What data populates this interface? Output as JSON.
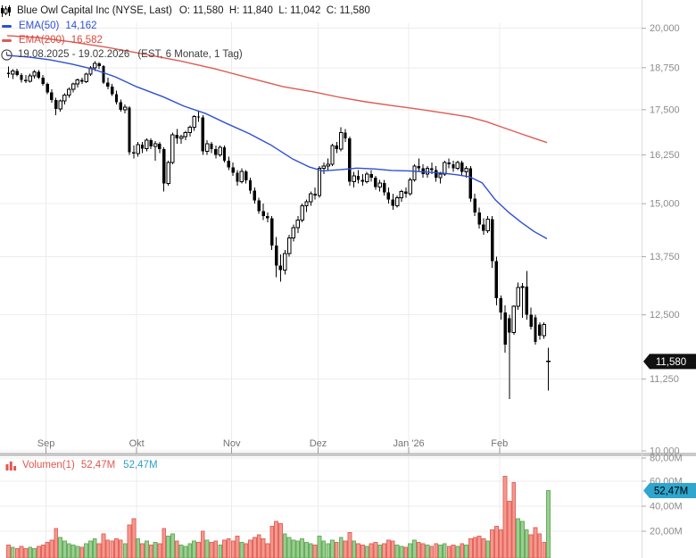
{
  "header": {
    "title": "Blue Owl Capital Inc (NYSE, Last)",
    "ohlc": "O: 11,580  H: 11,840  L: 11,042  C: 11,580",
    "ema50_label": "EMA(50)",
    "ema50_value": "14,162",
    "ema200_label": "EMA(200)",
    "ema200_value": "16,582",
    "range": "19.08.2025 - 19.02.2026",
    "range_info": "(EST, 6 Monate, 1 Tag)"
  },
  "volume_legend": {
    "label": "Volumen(1)",
    "value": "52,47M",
    "last_value": "52,47M"
  },
  "icons": [
    "candlestick-icon",
    "clock-icon",
    "volume-bars-icon"
  ],
  "colors": {
    "ema50": "#2e4fd4",
    "ema200": "#df5a52",
    "candle": "#000000",
    "vol_up_fill": "#9bce92",
    "vol_up_stroke": "#67ad5e",
    "vol_down_fill": "#f5988f",
    "vol_down_stroke": "#e2675e",
    "grid": "#ececec",
    "axis_text": "#8c8c8c",
    "time_text": "#737373",
    "price_badge_bg": "#111111",
    "price_badge_text": "#ffffff",
    "volume_badge_bg": "#2ea6ce",
    "volume_badge_text": "#0c2630",
    "divider": "#c9c9c9"
  },
  "chart_data": {
    "type": "candlestick+volume",
    "price_scale": "log",
    "ylim": [
      10000,
      20000
    ],
    "y_ticks": [
      {
        "label": "20,000",
        "value": 20000
      },
      {
        "label": "18,750",
        "value": 18750
      },
      {
        "label": "17,500",
        "value": 17500
      },
      {
        "label": "16,250",
        "value": 16250
      },
      {
        "label": "15,000",
        "value": 15000
      },
      {
        "label": "13,750",
        "value": 13750
      },
      {
        "label": "12,500",
        "value": 12500
      },
      {
        "label": "11,250",
        "value": 11250
      },
      {
        "label": "10,000",
        "value": 10000
      }
    ],
    "volume_y_ticks": [
      {
        "label": "80,00M",
        "value": 80
      },
      {
        "label": "60,00M",
        "value": 60
      },
      {
        "label": "40,00M",
        "value": 40
      },
      {
        "label": "20,00M",
        "value": 20
      }
    ],
    "x_ticks": [
      {
        "label": "Sep",
        "day": 9
      },
      {
        "label": "Okt",
        "day": 30
      },
      {
        "label": "Nov",
        "day": 52
      },
      {
        "label": "Dez",
        "day": 72
      },
      {
        "label": "Jan '26",
        "day": 93
      },
      {
        "label": "Feb",
        "day": 114
      }
    ],
    "last_price": "11,580",
    "last_volume": "52,47M",
    "candles": [
      [
        18600,
        18780,
        18450,
        18550,
        9,
        "r"
      ],
      [
        18550,
        18700,
        18400,
        18650,
        7,
        "g"
      ],
      [
        18650,
        18720,
        18480,
        18520,
        6,
        "r"
      ],
      [
        18520,
        18580,
        18300,
        18380,
        8,
        "r"
      ],
      [
        18380,
        18520,
        18280,
        18330,
        6,
        "r"
      ],
      [
        18330,
        18560,
        18300,
        18500,
        7,
        "g"
      ],
      [
        18500,
        18680,
        18420,
        18620,
        6,
        "g"
      ],
      [
        18620,
        18680,
        18400,
        18450,
        8,
        "r"
      ],
      [
        18450,
        18520,
        18200,
        18250,
        9,
        "r"
      ],
      [
        18250,
        18300,
        17950,
        18000,
        11,
        "r"
      ],
      [
        18000,
        18100,
        17700,
        17780,
        13,
        "r"
      ],
      [
        17780,
        17850,
        17350,
        17520,
        22,
        "r"
      ],
      [
        17520,
        17800,
        17450,
        17750,
        15,
        "g"
      ],
      [
        17750,
        17980,
        17650,
        17920,
        12,
        "g"
      ],
      [
        17920,
        18150,
        17850,
        18100,
        10,
        "g"
      ],
      [
        18100,
        18300,
        18000,
        18250,
        9,
        "g"
      ],
      [
        18250,
        18420,
        18150,
        18380,
        8,
        "g"
      ],
      [
        18380,
        18450,
        18250,
        18320,
        7,
        "r"
      ],
      [
        18320,
        18600,
        18280,
        18550,
        10,
        "g"
      ],
      [
        18550,
        18800,
        18500,
        18750,
        12,
        "g"
      ],
      [
        18750,
        18950,
        18650,
        18880,
        14,
        "g"
      ],
      [
        18880,
        18920,
        18700,
        18800,
        10,
        "r"
      ],
      [
        18800,
        18820,
        18250,
        18300,
        18,
        "r"
      ],
      [
        18300,
        18450,
        18100,
        18180,
        13,
        "r"
      ],
      [
        18180,
        18250,
        17900,
        17950,
        12,
        "r"
      ],
      [
        17950,
        18050,
        17650,
        17720,
        14,
        "r"
      ],
      [
        17720,
        17800,
        17450,
        17500,
        13,
        "r"
      ],
      [
        17500,
        17650,
        17400,
        17580,
        10,
        "g"
      ],
      [
        17560,
        17600,
        16250,
        16320,
        25,
        "r"
      ],
      [
        16320,
        16500,
        16150,
        16280,
        30,
        "r"
      ],
      [
        16280,
        16600,
        16200,
        16520,
        14,
        "g"
      ],
      [
        16520,
        16600,
        16300,
        16420,
        10,
        "r"
      ],
      [
        16420,
        16700,
        16350,
        16650,
        12,
        "g"
      ],
      [
        16650,
        16700,
        16400,
        16480,
        9,
        "r"
      ],
      [
        16480,
        16620,
        16100,
        16550,
        11,
        "g"
      ],
      [
        16550,
        16600,
        16300,
        16400,
        10,
        "r"
      ],
      [
        16400,
        16450,
        15300,
        15500,
        22,
        "r"
      ],
      [
        15500,
        16100,
        15450,
        16050,
        16,
        "g"
      ],
      [
        16050,
        16850,
        16000,
        16800,
        18,
        "g"
      ],
      [
        16800,
        16950,
        16550,
        16700,
        12,
        "r"
      ],
      [
        16700,
        16800,
        16550,
        16750,
        9,
        "g"
      ],
      [
        16750,
        16900,
        16650,
        16850,
        8,
        "g"
      ],
      [
        16850,
        17050,
        16750,
        17000,
        10,
        "g"
      ],
      [
        17000,
        17350,
        16900,
        17300,
        12,
        "g"
      ],
      [
        17300,
        17450,
        17150,
        17280,
        11,
        "r"
      ],
      [
        17280,
        17350,
        16250,
        16350,
        20,
        "r"
      ],
      [
        16350,
        16650,
        16250,
        16550,
        13,
        "g"
      ],
      [
        16550,
        16600,
        16300,
        16400,
        11,
        "r"
      ],
      [
        16400,
        16500,
        16150,
        16250,
        12,
        "r"
      ],
      [
        16250,
        16500,
        16200,
        16450,
        9,
        "g"
      ],
      [
        16450,
        16500,
        16050,
        16100,
        13,
        "r"
      ],
      [
        16100,
        16200,
        15850,
        15920,
        14,
        "r"
      ],
      [
        15920,
        16050,
        15700,
        15780,
        12,
        "r"
      ],
      [
        15780,
        15850,
        15450,
        15550,
        16,
        "r"
      ],
      [
        15550,
        15900,
        15500,
        15820,
        11,
        "g"
      ],
      [
        15820,
        15850,
        15500,
        15580,
        10,
        "r"
      ],
      [
        15580,
        15650,
        15250,
        15320,
        13,
        "r"
      ],
      [
        15320,
        15400,
        15000,
        15080,
        15,
        "r"
      ],
      [
        15080,
        15150,
        14750,
        14820,
        17,
        "r"
      ],
      [
        14820,
        15000,
        14600,
        14700,
        14,
        "r"
      ],
      [
        14700,
        14780,
        14550,
        14650,
        10,
        "r"
      ],
      [
        14650,
        14700,
        13900,
        14000,
        24,
        "r"
      ],
      [
        14000,
        14200,
        13300,
        13550,
        28,
        "r"
      ],
      [
        13550,
        13800,
        13200,
        13450,
        26,
        "r"
      ],
      [
        13450,
        13900,
        13350,
        13820,
        18,
        "g"
      ],
      [
        13820,
        14250,
        13750,
        14180,
        15,
        "g"
      ],
      [
        14180,
        14500,
        14100,
        14420,
        13,
        "g"
      ],
      [
        14420,
        14700,
        14300,
        14600,
        12,
        "g"
      ],
      [
        14600,
        15000,
        14550,
        14950,
        14,
        "g"
      ],
      [
        14950,
        15100,
        14800,
        15050,
        11,
        "g"
      ],
      [
        15050,
        15300,
        14950,
        15250,
        10,
        "g"
      ],
      [
        15250,
        15400,
        15100,
        15200,
        9,
        "r"
      ],
      [
        15200,
        15950,
        15150,
        15900,
        16,
        "g"
      ],
      [
        15900,
        16050,
        15750,
        15950,
        12,
        "g"
      ],
      [
        15950,
        16150,
        15850,
        16000,
        10,
        "g"
      ],
      [
        16000,
        16550,
        15950,
        16500,
        13,
        "g"
      ],
      [
        16500,
        16600,
        16300,
        16400,
        11,
        "r"
      ],
      [
        16400,
        17000,
        16350,
        16850,
        15,
        "g"
      ],
      [
        16850,
        16950,
        16600,
        16700,
        12,
        "r"
      ],
      [
        16700,
        16750,
        15450,
        15550,
        19,
        "r"
      ],
      [
        15550,
        15800,
        15400,
        15700,
        12,
        "g"
      ],
      [
        15700,
        15850,
        15500,
        15600,
        10,
        "r"
      ],
      [
        15600,
        15750,
        15450,
        15550,
        9,
        "r"
      ],
      [
        15550,
        15800,
        15500,
        15750,
        8,
        "g"
      ],
      [
        15750,
        15850,
        15550,
        15650,
        10,
        "r"
      ],
      [
        15650,
        15700,
        15350,
        15420,
        11,
        "r"
      ],
      [
        15420,
        15600,
        15300,
        15520,
        9,
        "g"
      ],
      [
        15520,
        15600,
        15200,
        15280,
        10,
        "r"
      ],
      [
        15280,
        15400,
        15000,
        15100,
        13,
        "r"
      ],
      [
        15100,
        15250,
        14850,
        14950,
        12,
        "r"
      ],
      [
        14950,
        15200,
        14900,
        15150,
        9,
        "g"
      ],
      [
        15150,
        15350,
        15050,
        15300,
        8,
        "g"
      ],
      [
        15300,
        15400,
        15150,
        15250,
        7,
        "r"
      ],
      [
        15250,
        15650,
        15200,
        15600,
        10,
        "g"
      ],
      [
        15600,
        16000,
        15550,
        15950,
        13,
        "g"
      ],
      [
        15950,
        16150,
        15800,
        15900,
        11,
        "r"
      ],
      [
        15900,
        16000,
        15650,
        15750,
        10,
        "r"
      ],
      [
        15750,
        15950,
        15650,
        15900,
        9,
        "g"
      ],
      [
        15900,
        16050,
        15750,
        15850,
        8,
        "r"
      ],
      [
        15850,
        15950,
        15550,
        15650,
        10,
        "r"
      ],
      [
        15650,
        15800,
        15500,
        15750,
        9,
        "g"
      ],
      [
        15750,
        16100,
        15700,
        16050,
        10,
        "g"
      ],
      [
        16050,
        16150,
        15900,
        16000,
        8,
        "r"
      ],
      [
        16000,
        16100,
        15800,
        15900,
        9,
        "r"
      ],
      [
        15900,
        16100,
        15850,
        16050,
        8,
        "g"
      ],
      [
        16050,
        16100,
        15700,
        15800,
        10,
        "r"
      ],
      [
        15800,
        15950,
        15650,
        15900,
        9,
        "g"
      ],
      [
        15900,
        15950,
        15050,
        15120,
        14,
        "r"
      ],
      [
        15120,
        15250,
        14700,
        14780,
        15,
        "r"
      ],
      [
        14780,
        14900,
        14400,
        14500,
        16,
        "r"
      ],
      [
        14500,
        14650,
        14250,
        14350,
        14,
        "r"
      ],
      [
        14350,
        14700,
        14300,
        14620,
        12,
        "g"
      ],
      [
        14620,
        14700,
        13500,
        13650,
        21,
        "r"
      ],
      [
        13650,
        13750,
        12700,
        12850,
        24,
        "r"
      ],
      [
        12850,
        12900,
        12400,
        12550,
        21,
        "r"
      ],
      [
        12550,
        12700,
        11750,
        11900,
        64,
        "r"
      ],
      [
        12430,
        12500,
        10890,
        12140,
        44,
        "r"
      ],
      [
        12140,
        12700,
        12100,
        12680,
        59,
        "r"
      ],
      [
        12680,
        13180,
        12600,
        13070,
        30,
        "g"
      ],
      [
        13070,
        13170,
        12440,
        13090,
        28,
        "g"
      ],
      [
        13090,
        13430,
        12400,
        12500,
        21,
        "g"
      ],
      [
        12500,
        12650,
        12200,
        12260,
        17,
        "r"
      ],
      [
        12450,
        12500,
        11900,
        11960,
        23,
        "r"
      ],
      [
        12300,
        12350,
        12000,
        12080,
        18,
        "r"
      ],
      [
        12080,
        12350,
        12020,
        12300,
        11,
        "r"
      ],
      [
        11580,
        11840,
        11042,
        11580,
        52.47,
        "g"
      ]
    ],
    "ema50": [
      [
        0,
        19130
      ],
      [
        5,
        19080
      ],
      [
        10,
        18990
      ],
      [
        15,
        18860
      ],
      [
        20,
        18700
      ],
      [
        25,
        18470
      ],
      [
        30,
        18170
      ],
      [
        36,
        17880
      ],
      [
        41,
        17600
      ],
      [
        46,
        17390
      ],
      [
        51,
        17100
      ],
      [
        56,
        16830
      ],
      [
        61,
        16520
      ],
      [
        66,
        16150
      ],
      [
        70,
        15930
      ],
      [
        73,
        15830
      ],
      [
        77,
        15860
      ],
      [
        81,
        15900
      ],
      [
        85,
        15880
      ],
      [
        89,
        15840
      ],
      [
        93,
        15830
      ],
      [
        97,
        15800
      ],
      [
        101,
        15770
      ],
      [
        104,
        15730
      ],
      [
        107,
        15680
      ],
      [
        110,
        15520
      ],
      [
        113,
        15100
      ],
      [
        116,
        14800
      ],
      [
        119,
        14550
      ],
      [
        122,
        14330
      ],
      [
        125,
        14162
      ]
    ],
    "ema200": [
      [
        0,
        19760
      ],
      [
        7,
        19700
      ],
      [
        15,
        19560
      ],
      [
        23,
        19390
      ],
      [
        31,
        19190
      ],
      [
        40,
        18960
      ],
      [
        48,
        18720
      ],
      [
        56,
        18440
      ],
      [
        64,
        18170
      ],
      [
        71,
        18020
      ],
      [
        77,
        17860
      ],
      [
        83,
        17730
      ],
      [
        89,
        17620
      ],
      [
        95,
        17520
      ],
      [
        102,
        17390
      ],
      [
        107,
        17290
      ],
      [
        111,
        17160
      ],
      [
        115,
        16990
      ],
      [
        119,
        16820
      ],
      [
        122,
        16700
      ],
      [
        125,
        16582
      ]
    ]
  }
}
